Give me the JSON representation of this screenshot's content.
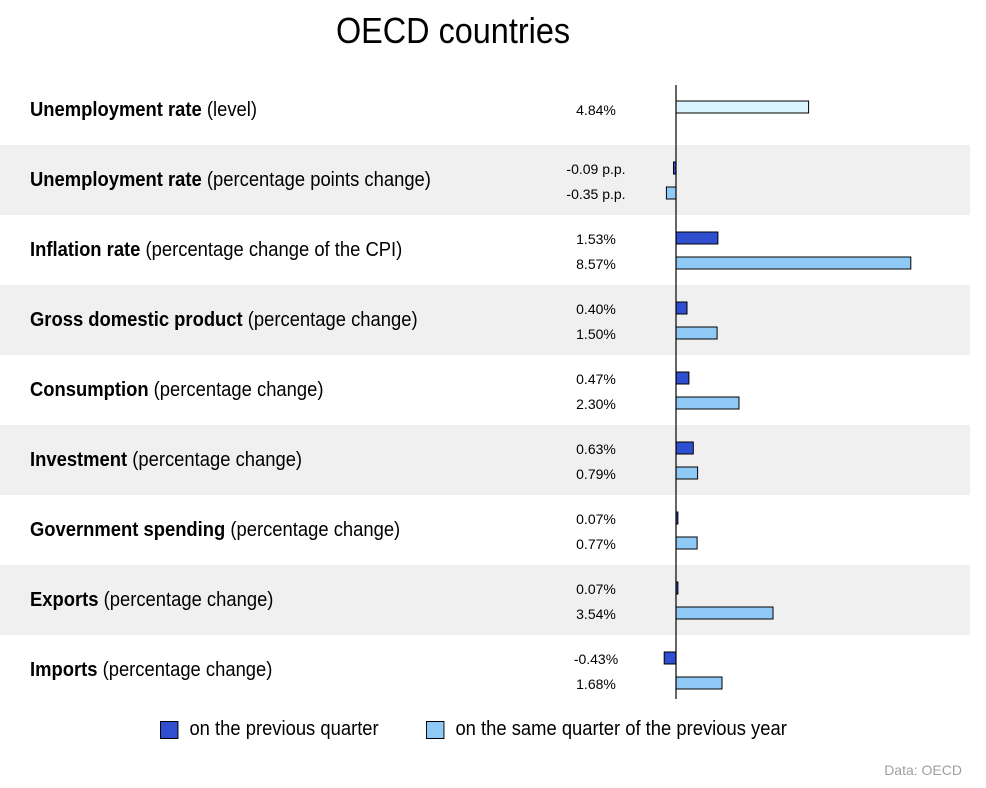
{
  "chart_data": {
    "type": "bar",
    "orientation": "horizontal",
    "title": "OECD countries",
    "colors": {
      "prev_quarter": "#2f4ed0",
      "prev_year": "#8fcaf7",
      "level": "#d9f3ff",
      "shade": "#f0f0f0"
    },
    "series": [
      {
        "key": "prev_quarter",
        "name": "on the previous quarter"
      },
      {
        "key": "prev_year",
        "name": "on the same quarter of the previous year"
      }
    ],
    "rows": [
      {
        "name": "Unemployment rate",
        "qualifier": "(level)",
        "level": 4.84,
        "level_label": "4.84%"
      },
      {
        "name": "Unemployment rate",
        "qualifier": "(percentage points change)",
        "prev_quarter": -0.09,
        "prev_quarter_label": "-0.09 p.p.",
        "prev_year": -0.35,
        "prev_year_label": "-0.35 p.p."
      },
      {
        "name": "Inflation rate",
        "qualifier": "(percentage change of the CPI)",
        "prev_quarter": 1.53,
        "prev_quarter_label": "1.53%",
        "prev_year": 8.57,
        "prev_year_label": "8.57%"
      },
      {
        "name": "Gross domestic product",
        "qualifier": "(percentage change)",
        "prev_quarter": 0.4,
        "prev_quarter_label": "0.40%",
        "prev_year": 1.5,
        "prev_year_label": "1.50%"
      },
      {
        "name": "Consumption",
        "qualifier": "(percentage change)",
        "prev_quarter": 0.47,
        "prev_quarter_label": "0.47%",
        "prev_year": 2.3,
        "prev_year_label": "2.30%"
      },
      {
        "name": "Investment",
        "qualifier": "(percentage change)",
        "prev_quarter": 0.63,
        "prev_quarter_label": "0.63%",
        "prev_year": 0.79,
        "prev_year_label": "0.79%"
      },
      {
        "name": "Government spending",
        "qualifier": "(percentage change)",
        "prev_quarter": 0.07,
        "prev_quarter_label": "0.07%",
        "prev_year": 0.77,
        "prev_year_label": "0.77%"
      },
      {
        "name": "Exports",
        "qualifier": "(percentage change)",
        "prev_quarter": 0.07,
        "prev_quarter_label": "0.07%",
        "prev_year": 3.54,
        "prev_year_label": "3.54%"
      },
      {
        "name": "Imports",
        "qualifier": "(percentage change)",
        "prev_quarter": -0.43,
        "prev_quarter_label": "-0.43%",
        "prev_year": 1.68,
        "prev_year_label": "1.68%"
      }
    ],
    "xlim": [
      -0.5,
      8.6
    ],
    "grid": false,
    "legend_position": "bottom"
  },
  "source": "Data: OECD"
}
